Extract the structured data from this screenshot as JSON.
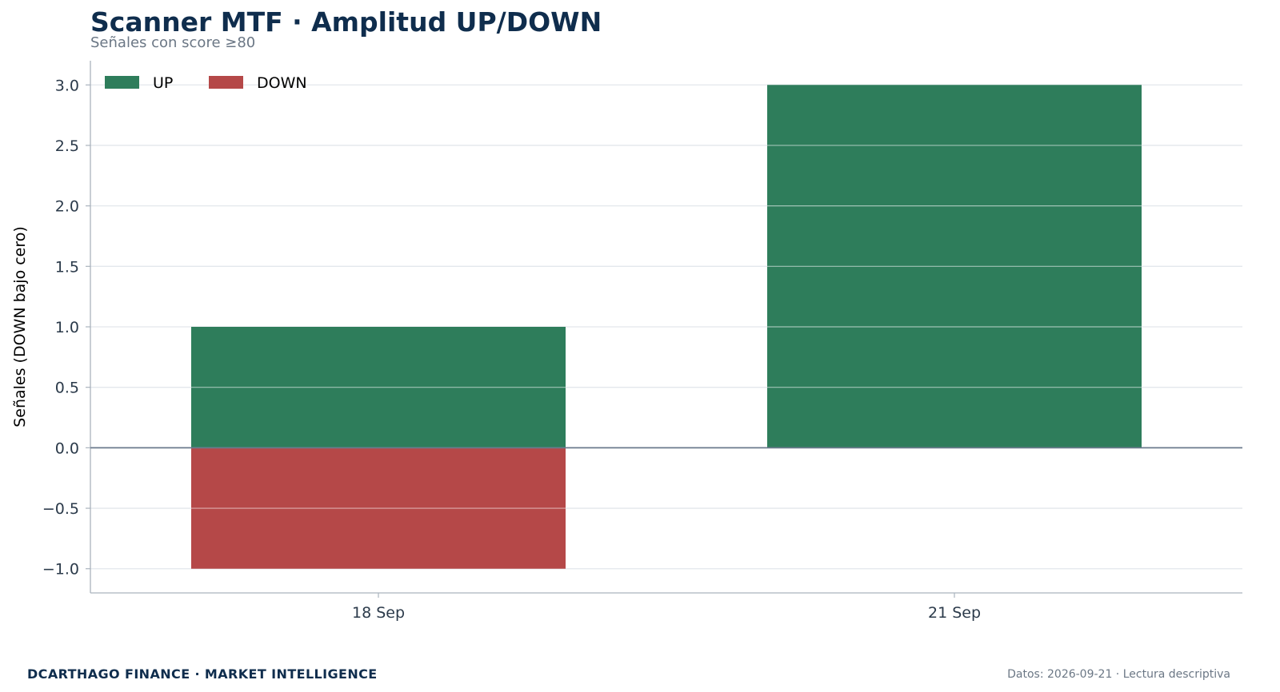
{
  "header": {
    "title": "Scanner MTF · Amplitud UP/DOWN",
    "subtitle": "Señales con score ≥80"
  },
  "footer": {
    "brand": "DCARTHAGO FINANCE · MARKET INTELLIGENCE",
    "note": "Datos: 2026-09-21 · Lectura descriptiva"
  },
  "colors": {
    "up": "#2e7d5b",
    "down": "#b54848",
    "grid": "#e3e7ec",
    "zero_line": "#6b7a8c",
    "axis": "#aab3bd",
    "title": "#0f2d4d"
  },
  "chart_data": {
    "type": "bar",
    "stacked": "diverging",
    "title": "Scanner MTF · Amplitud UP/DOWN",
    "subtitle": "Señales con score ≥80",
    "xlabel": "",
    "ylabel": "Señales (DOWN bajo cero)",
    "categories": [
      "18 Sep",
      "21 Sep"
    ],
    "series": [
      {
        "name": "UP",
        "values": [
          1,
          3
        ]
      },
      {
        "name": "DOWN",
        "values": [
          -1,
          0
        ]
      }
    ],
    "ylim": [
      -1.2,
      3.2
    ],
    "yticks": [
      -1.0,
      -0.5,
      0.0,
      0.5,
      1.0,
      1.5,
      2.0,
      2.5,
      3.0
    ],
    "ytick_labels": [
      "−1.0",
      "−0.5",
      "0.0",
      "0.5",
      "1.0",
      "1.5",
      "2.0",
      "2.5",
      "3.0"
    ],
    "grid": "horizontal",
    "legend": "top-left"
  }
}
